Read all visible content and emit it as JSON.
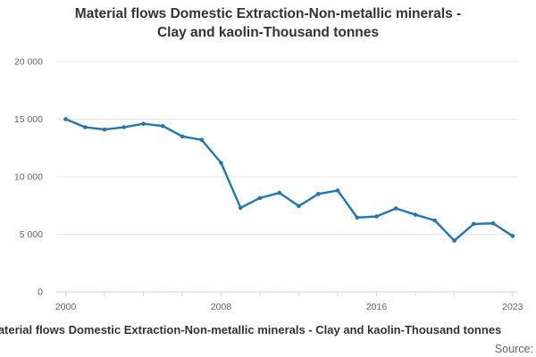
{
  "header": {
    "title_line1": "Material flows Domestic Extraction-Non-metallic minerals -",
    "title_line2": "Clay and kaolin-Thousand tonnes"
  },
  "footer": {
    "caption": "Material flows Domestic Extraction-Non-metallic minerals - Clay and kaolin-Thousand tonnes",
    "source_label": "Source:"
  },
  "chart_data": {
    "type": "line",
    "title": "Material flows Domestic Extraction-Non-metallic minerals - Clay and kaolin-Thousand tonnes",
    "x": [
      2000,
      2001,
      2002,
      2003,
      2004,
      2005,
      2006,
      2007,
      2008,
      2009,
      2010,
      2011,
      2012,
      2013,
      2014,
      2015,
      2016,
      2017,
      2018,
      2019,
      2020,
      2021,
      2022,
      2023
    ],
    "series": [
      {
        "name": "Clay and kaolin",
        "color": "#1f77b4",
        "values": [
          15000,
          14300,
          14100,
          14300,
          14600,
          14400,
          13500,
          13200,
          11200,
          7300,
          8150,
          8600,
          7450,
          8500,
          8800,
          6450,
          6550,
          7250,
          6700,
          6200,
          4450,
          5900,
          5950,
          4850
        ]
      }
    ],
    "xlabel": "",
    "ylabel": "",
    "xlim": [
      2000,
      2023
    ],
    "ylim": [
      0,
      20000
    ],
    "y_ticks": [
      0,
      5000,
      10000,
      15000,
      20000
    ],
    "y_tick_labels": [
      "0",
      "5 000",
      "10 000",
      "15 000",
      "20 000"
    ],
    "x_ticks": [
      2000,
      2002,
      2004,
      2006,
      2008,
      2010,
      2012,
      2014,
      2016,
      2018,
      2020,
      2023
    ],
    "x_labeled_ticks": [
      2000,
      2008,
      2016,
      2023
    ],
    "grid": "horizontal-only",
    "legend": "none",
    "marker": "circle",
    "colors": {
      "line": "#1f77b4",
      "grid": "#e6e6e6",
      "axis": "#ccd6eb",
      "tick_text": "#666666",
      "title_text": "#333333"
    }
  }
}
